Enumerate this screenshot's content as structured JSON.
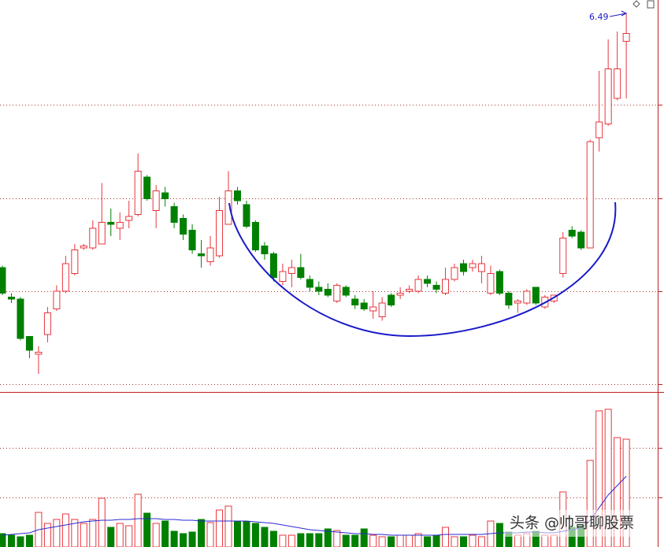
{
  "chart_data": {
    "type": "candlestick",
    "annotation": "6.49",
    "watermark": "头条 @帅哥聊股票",
    "up_color": "#e8363c",
    "down_color": "#008000",
    "ma_color": "#2a2ad0",
    "ylim": [
      4.58,
      6.56
    ],
    "volume_ylim": [
      0,
      195
    ],
    "open": [
      5.2,
      5.05,
      5.04,
      4.85,
      4.76,
      4.86,
      4.99,
      5.08,
      5.17,
      5.3,
      5.3,
      5.32,
      5.43,
      5.4,
      5.44,
      5.47,
      5.66,
      5.49,
      5.58,
      5.51,
      5.45,
      5.39,
      5.27,
      5.23,
      5.26,
      5.42,
      5.59,
      5.52,
      5.43,
      5.31,
      5.27,
      5.13,
      5.17,
      5.2,
      5.14,
      5.1,
      5.09,
      5.03,
      5.1,
      5.04,
      5.02,
      4.98,
      4.95,
      5.06,
      5.06,
      5.08,
      5.08,
      5.14,
      5.11,
      5.07,
      5.14,
      5.22,
      5.2,
      5.18,
      5.07,
      5.18,
      5.07,
      5.02,
      5.02,
      5.1,
      5.0,
      5.03,
      5.17,
      5.39,
      5.38,
      5.3,
      5.86,
      5.93,
      6.06,
      6.35
    ],
    "close": [
      5.07,
      5.04,
      4.84,
      4.78,
      4.77,
      4.97,
      5.08,
      5.22,
      5.29,
      5.31,
      5.4,
      5.43,
      5.42,
      5.43,
      5.46,
      5.69,
      5.55,
      5.59,
      5.55,
      5.43,
      5.37,
      5.29,
      5.26,
      5.3,
      5.49,
      5.59,
      5.54,
      5.41,
      5.29,
      5.27,
      5.15,
      5.18,
      5.2,
      5.15,
      5.1,
      5.08,
      5.06,
      5.11,
      5.06,
      5.01,
      4.99,
      5.0,
      5.02,
      5.01,
      5.07,
      5.09,
      5.14,
      5.12,
      5.09,
      5.14,
      5.2,
      5.18,
      5.22,
      5.22,
      5.17,
      5.07,
      5.01,
      5.03,
      5.08,
      5.02,
      5.05,
      5.06,
      5.35,
      5.36,
      5.3,
      5.84,
      5.94,
      6.21,
      6.21,
      6.39
    ],
    "high": [
      5.21,
      5.07,
      5.05,
      4.85,
      4.8,
      5.0,
      5.11,
      5.26,
      5.32,
      5.32,
      5.44,
      5.63,
      5.5,
      5.48,
      5.54,
      5.78,
      5.67,
      5.62,
      5.61,
      5.53,
      5.47,
      5.42,
      5.34,
      5.36,
      5.56,
      5.69,
      5.61,
      5.54,
      5.44,
      5.33,
      5.28,
      5.22,
      5.24,
      5.27,
      5.16,
      5.13,
      5.12,
      5.12,
      5.11,
      5.06,
      5.04,
      5.08,
      5.05,
      5.07,
      5.1,
      5.11,
      5.16,
      5.16,
      5.13,
      5.2,
      5.22,
      5.24,
      5.24,
      5.26,
      5.21,
      5.19,
      5.08,
      5.04,
      5.09,
      5.1,
      5.06,
      5.06,
      5.38,
      5.41,
      5.39,
      5.85,
      6.2,
      6.36,
      6.4,
      6.49
    ],
    "low": [
      5.06,
      5.02,
      4.83,
      4.74,
      4.66,
      4.82,
      4.98,
      5.07,
      5.16,
      5.29,
      5.29,
      5.32,
      5.36,
      5.34,
      5.4,
      5.46,
      5.54,
      5.4,
      5.51,
      5.4,
      5.34,
      5.27,
      5.2,
      5.21,
      5.25,
      5.42,
      5.52,
      5.4,
      5.28,
      5.24,
      5.13,
      5.11,
      5.1,
      5.14,
      5.08,
      5.06,
      5.05,
      5.02,
      5.05,
      4.99,
      4.98,
      4.94,
      4.93,
      5.0,
      5.04,
      5.07,
      5.07,
      5.1,
      5.07,
      5.06,
      5.13,
      5.16,
      5.18,
      5.12,
      5.06,
      5.06,
      4.99,
      4.97,
      5.01,
      5.01,
      4.99,
      5.02,
      5.15,
      5.35,
      5.29,
      5.3,
      5.79,
      5.92,
      6.05,
      6.06
    ],
    "volume": [
      17,
      15,
      13,
      15,
      44,
      30,
      35,
      42,
      35,
      30,
      35,
      62,
      25,
      30,
      27,
      67,
      43,
      30,
      33,
      20,
      17,
      19,
      35,
      31,
      47,
      52,
      33,
      32,
      30,
      25,
      20,
      15,
      15,
      17,
      17,
      17,
      23,
      21,
      15,
      15,
      23,
      15,
      13,
      13,
      15,
      15,
      17,
      13,
      15,
      25,
      13,
      13,
      15,
      13,
      33,
      30,
      19,
      15,
      17,
      20,
      15,
      15,
      70,
      25,
      27,
      110,
      173,
      175,
      139,
      137
    ],
    "volume_ma": [
      15,
      16,
      17,
      18,
      22,
      24,
      26,
      28,
      30,
      32,
      33,
      34,
      34,
      35,
      35,
      36,
      36,
      36,
      35,
      35,
      34,
      34,
      33,
      33,
      33,
      33,
      33,
      33,
      32,
      31,
      30,
      28,
      26,
      24,
      22,
      21,
      20,
      19,
      18,
      17,
      17,
      16,
      16,
      15,
      15,
      15,
      15,
      15,
      15,
      16,
      16,
      16,
      16,
      16,
      17,
      18,
      18,
      18,
      19,
      19,
      18,
      18,
      20,
      22,
      24,
      34,
      50,
      66,
      78,
      90
    ]
  }
}
